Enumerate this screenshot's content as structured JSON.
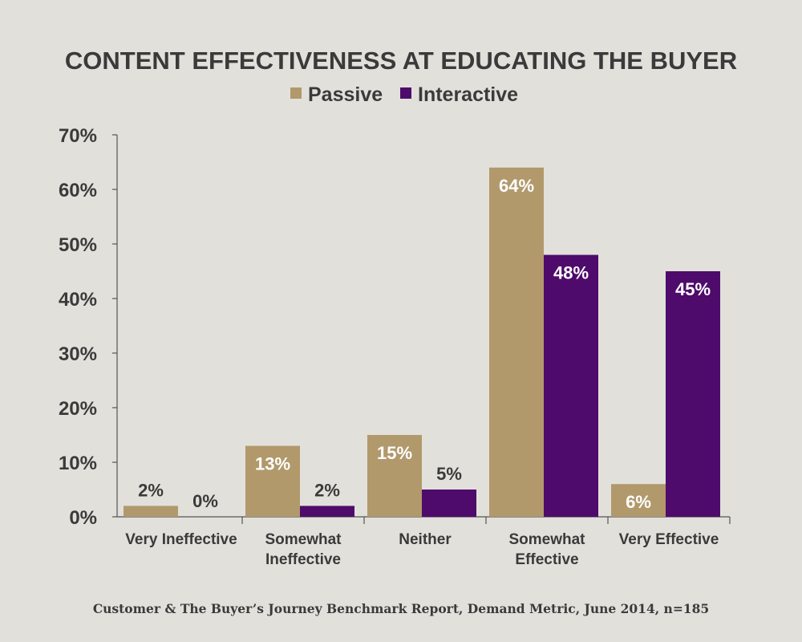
{
  "chart_data": {
    "type": "bar",
    "title": "CONTENT EFFECTIVENESS AT EDUCATING THE BUYER",
    "source": "Customer & The Buyer’s Journey Benchmark Report, Demand Metric, June 2014, n=185",
    "categories": [
      [
        "Very Ineffective"
      ],
      [
        "Somewhat",
        "Ineffective"
      ],
      [
        "Neither"
      ],
      [
        "Somewhat",
        "Effective"
      ],
      [
        "Very Effective"
      ]
    ],
    "series": [
      {
        "name": "Passive",
        "color": "#b1996c",
        "values": [
          2,
          13,
          15,
          64,
          6
        ],
        "labels": [
          "2%",
          "13%",
          "15%",
          "64%",
          "6%"
        ]
      },
      {
        "name": "Interactive",
        "color": "#4e0b6b",
        "values": [
          0,
          2,
          5,
          48,
          45
        ],
        "labels": [
          "0%",
          "2%",
          "5%",
          "48%",
          "45%"
        ]
      }
    ],
    "ylim": [
      0,
      70
    ],
    "yticks": [
      "0%",
      "10%",
      "20%",
      "30%",
      "40%",
      "50%",
      "60%",
      "70%"
    ],
    "legend_position": "top-center",
    "grid": false
  }
}
